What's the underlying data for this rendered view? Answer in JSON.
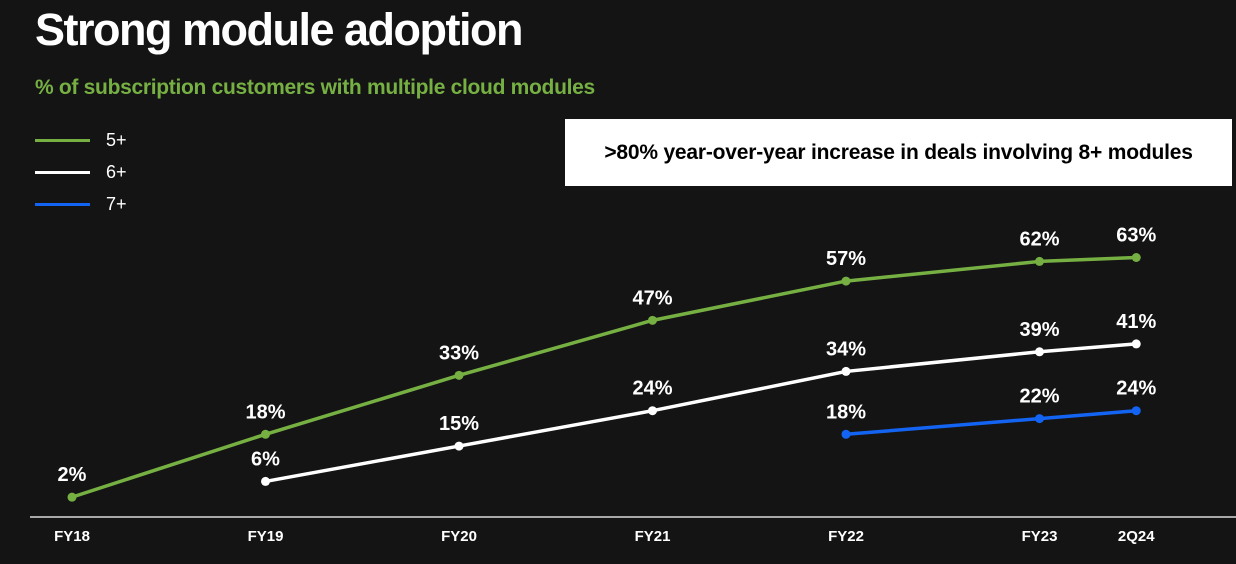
{
  "page": {
    "title": "Strong module adoption",
    "subtitle": "% of subscription customers with multiple cloud modules",
    "callout": ">80% year-over-year increase in deals involving 8+ modules"
  },
  "colors": {
    "background": "#141414",
    "title_text": "#ffffff",
    "subtitle_green": "#76b043",
    "callout_bg": "#ffffff",
    "callout_text": "#000000",
    "axis": "#d9d9d9",
    "data_label": "#ffffff",
    "tick_label": "#ffffff"
  },
  "chart_data": {
    "type": "line",
    "title": "Strong module adoption",
    "subtitle": "% of subscription customers with multiple cloud modules",
    "categories": [
      "FY18",
      "FY19",
      "FY20",
      "FY21",
      "FY22",
      "FY23",
      "2Q24"
    ],
    "series": [
      {
        "name": "5+",
        "color": "#76b043",
        "values": [
          2,
          18,
          33,
          47,
          57,
          62,
          63
        ]
      },
      {
        "name": "6+",
        "color": "#ffffff",
        "values": [
          null,
          6,
          15,
          24,
          34,
          39,
          41
        ]
      },
      {
        "name": "7+",
        "color": "#1464f4",
        "values": [
          null,
          null,
          null,
          null,
          18,
          22,
          24
        ]
      }
    ],
    "ylim": [
      0,
      70
    ],
    "grid": false,
    "legend_position": "top-left",
    "x_units": [
      0,
      1,
      2,
      3,
      4,
      5,
      5.5
    ],
    "value_suffix": "%"
  }
}
